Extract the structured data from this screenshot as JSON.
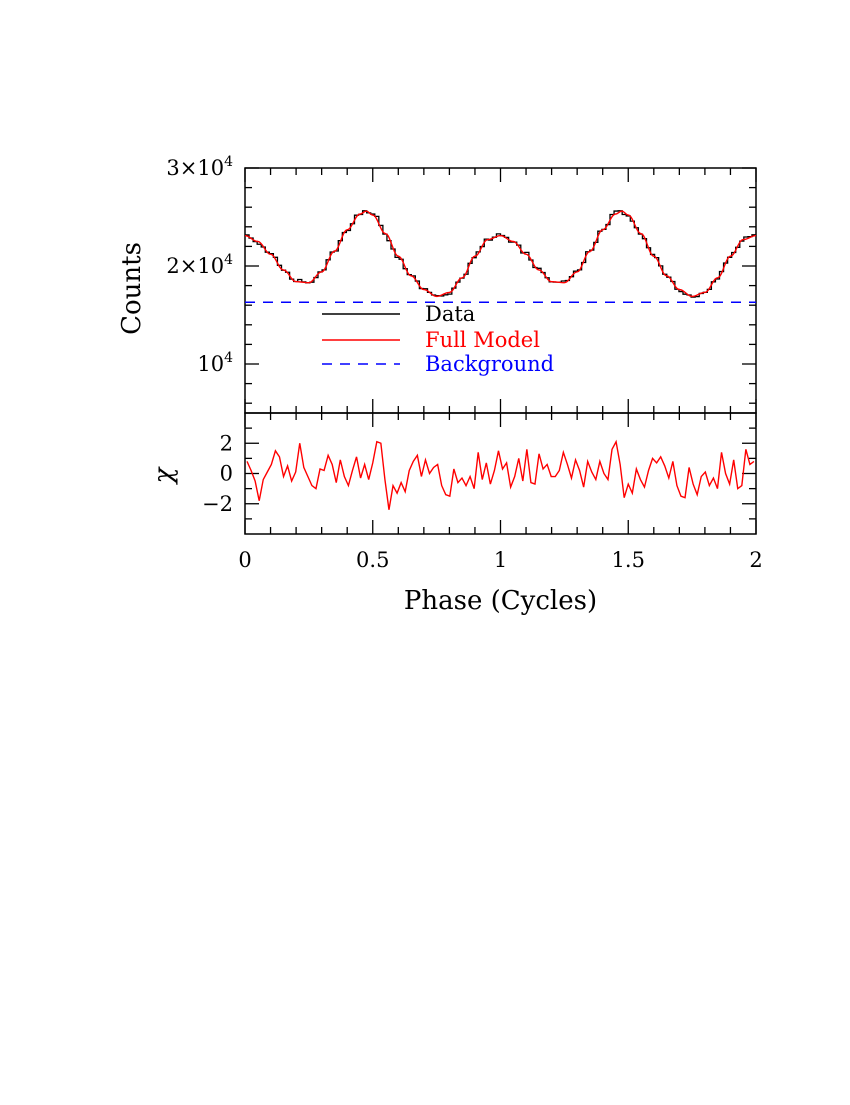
{
  "chart_data": [
    {
      "type": "line",
      "panel": "top",
      "ylabel": "Counts",
      "xlim": [
        0,
        2
      ],
      "ylim": [
        5000,
        30000
      ],
      "ytick_labels": [
        {
          "value": 10000,
          "base": "10",
          "exp": "4"
        },
        {
          "value": 20000,
          "base": "2×10",
          "exp": "4"
        },
        {
          "value": 30000,
          "base": "3×10",
          "exp": "4"
        }
      ],
      "legend": [
        "Data",
        "Full Model",
        "Background"
      ],
      "legend_placement": "center-left",
      "series": [
        {
          "name": "Data",
          "style": "histogram-step",
          "color": "#000000"
        },
        {
          "name": "Full Model",
          "style": "solid",
          "color": "#ff0000"
        },
        {
          "name": "Background",
          "style": "dashed",
          "color": "#0000ff",
          "value": 16300
        }
      ],
      "model_points": {
        "x": [
          0,
          0.05,
          0.1,
          0.15,
          0.2,
          0.25,
          0.3,
          0.35,
          0.4,
          0.45,
          0.475,
          0.5,
          0.55,
          0.6,
          0.65,
          0.7,
          0.75,
          0.8,
          0.85,
          0.9,
          0.95,
          1.0,
          1.05,
          1.1,
          1.15,
          1.2,
          1.25,
          1.3,
          1.35,
          1.4,
          1.45,
          1.475,
          1.5,
          1.55,
          1.6,
          1.65,
          1.7,
          1.75,
          1.8,
          1.85,
          1.9,
          1.95,
          2.0
        ],
        "y": [
          23100,
          22500,
          21200,
          19600,
          18400,
          18300,
          19400,
          21500,
          23700,
          25300,
          25600,
          25200,
          23300,
          21000,
          19000,
          17600,
          16900,
          17300,
          18800,
          21000,
          22700,
          23100,
          22500,
          21200,
          19600,
          18400,
          18300,
          19400,
          21500,
          23700,
          25300,
          25600,
          25200,
          23300,
          21000,
          19000,
          17600,
          16900,
          17300,
          18800,
          21000,
          22700,
          23100
        ]
      }
    },
    {
      "type": "line",
      "panel": "bottom",
      "ylabel": "χ",
      "xlabel": "Phase (Cycles)",
      "xlim": [
        0,
        2
      ],
      "ylim": [
        -4,
        4
      ],
      "xticks": [
        0,
        0.5,
        1,
        1.5,
        2
      ],
      "xtick_labels": [
        "0",
        "0.5",
        "1",
        "1.5",
        "2"
      ],
      "yticks": [
        -2,
        0,
        2
      ],
      "ytick_labels": [
        "−2",
        "0",
        "2"
      ],
      "series": [
        {
          "name": "",
          "color": "#ff0000",
          "values": [
            0.8,
            0.2,
            -0.5,
            -1.8,
            -0.4,
            0.1,
            0.6,
            1.5,
            1.1,
            -0.2,
            0.5,
            -0.5,
            0.1,
            2.0,
            0.4,
            -0.2,
            -0.8,
            -1.0,
            0.3,
            0.2,
            1.2,
            0.6,
            -0.6,
            0.9,
            -0.2,
            -0.8,
            0.2,
            1.1,
            -0.3,
            0.6,
            -0.4,
            0.7,
            2.1,
            2.0,
            -0.4,
            -2.4,
            -0.8,
            -1.3,
            -0.6,
            -1.2,
            0.2,
            0.8,
            1.2,
            -0.2,
            0.9,
            0.0,
            0.4,
            0.6,
            -0.8,
            -1.4,
            -1.5,
            0.3,
            -0.6,
            -0.3,
            -0.8,
            -0.2,
            -1.0,
            1.4,
            -0.4,
            0.7,
            -0.7,
            0.2,
            1.5,
            0.3,
            0.7,
            -0.9,
            -0.2,
            1.0,
            -0.5,
            1.6,
            -0.6,
            -0.7,
            1.3,
            0.3,
            0.6,
            -0.2,
            -0.2,
            0.2,
            1.4,
            0.6,
            -0.3,
            0.9,
            0.2,
            -0.9,
            0.8,
            0.1,
            -0.4,
            0.8,
            0.0,
            -0.4,
            1.6,
            2.1,
            0.6,
            -1.6,
            -0.7,
            -1.3,
            0.3,
            -0.4,
            -0.9,
            0.2,
            1.0,
            0.7,
            1.1,
            0.5,
            -0.3,
            0.8,
            -0.8,
            -1.5,
            -1.6,
            0.4,
            -0.7,
            -1.4,
            -0.2,
            0.1,
            -0.8,
            -0.3,
            -1.0,
            1.4,
            0.0,
            -0.7,
            0.9,
            -1.0,
            -0.8,
            1.6,
            0.6,
            0.8
          ]
        }
      ]
    }
  ]
}
